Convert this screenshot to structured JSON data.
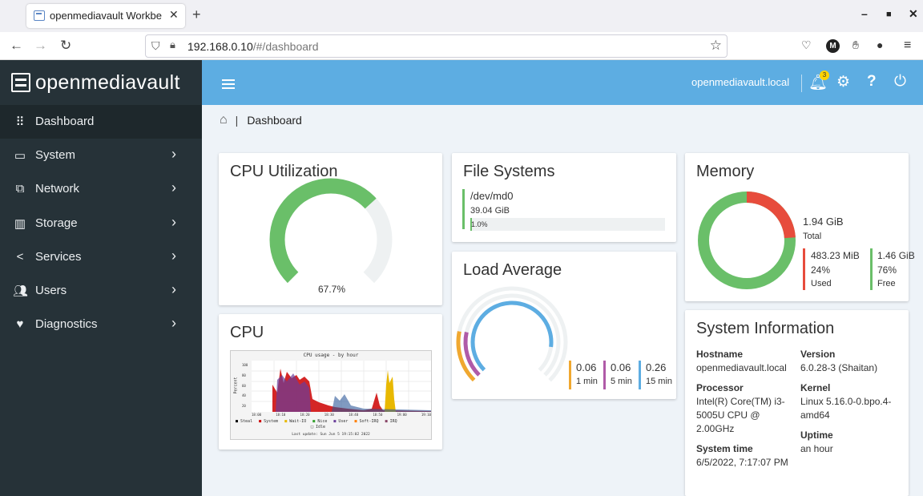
{
  "browser": {
    "tab_title": "openmediavault Workbe",
    "url_host": "192.168.0.10",
    "url_rest": "/#/dashboard"
  },
  "app": {
    "logo_text": "openmediavault"
  },
  "sidebar": {
    "items": [
      {
        "label": "Dashboard",
        "icon": "grid-icon",
        "active": true
      },
      {
        "label": "System",
        "icon": "laptop-icon"
      },
      {
        "label": "Network",
        "icon": "network-icon"
      },
      {
        "label": "Storage",
        "icon": "storage-icon"
      },
      {
        "label": "Services",
        "icon": "share-icon"
      },
      {
        "label": "Users",
        "icon": "users-icon"
      },
      {
        "label": "Diagnostics",
        "icon": "heart-pulse-icon"
      }
    ]
  },
  "topbar": {
    "hostname": "openmediavault.local",
    "notification_count": "3"
  },
  "breadcrumb": {
    "current": "Dashboard"
  },
  "cpu_utilization": {
    "title": "CPU Utilization",
    "value_label": "67.7%",
    "value": 67.7,
    "color": "#6abf69"
  },
  "file_systems": {
    "title": "File Systems",
    "device": "/dev/md0",
    "size": "39.04 GiB",
    "usage_label": "1.0%",
    "usage": 1.0
  },
  "load_average": {
    "title": "Load Average",
    "values": [
      {
        "value": "0.06",
        "label": "1 min",
        "color": "#f0a830"
      },
      {
        "value": "0.06",
        "label": "5 min",
        "color": "#b05ba8"
      },
      {
        "value": "0.26",
        "label": "15 min",
        "color": "#5dade2"
      }
    ]
  },
  "cpu_graph": {
    "title": "CPU",
    "chart_title": "CPU usage - by hour",
    "ylabel": "Percent",
    "ytick_labels": [
      "100",
      "80",
      "60",
      "40",
      "20",
      "0"
    ],
    "xtick_labels": [
      "18:00",
      "18:10",
      "18:20",
      "18:30",
      "18:40",
      "18:50",
      "19:00",
      "19:10"
    ],
    "legend": [
      "Steal",
      "System",
      "Wait-IO",
      "Nice",
      "User",
      "Soft-IRQ",
      "IRQ",
      "Idle"
    ],
    "last_update": "Last update: Sun Jun  5 19:15:02 2022"
  },
  "memory": {
    "title": "Memory",
    "total": "1.94 GiB",
    "total_label": "Total",
    "used": "483.23 MiB",
    "used_pct": "24%",
    "used_label": "Used",
    "used_fraction": 0.24,
    "free": "1.46 GiB",
    "free_pct": "76%",
    "free_label": "Free",
    "used_color": "#e74c3c",
    "free_color": "#6abf69"
  },
  "system_info": {
    "title": "System Information",
    "hostname_label": "Hostname",
    "hostname": "openmediavault.local",
    "version_label": "Version",
    "version": "6.0.28-3 (Shaitan)",
    "processor_label": "Processor",
    "processor": "Intel(R) Core(TM) i3-5005U CPU @ 2.00GHz",
    "kernel_label": "Kernel",
    "kernel": "Linux 5.16.0-0.bpo.4-amd64",
    "systime_label": "System time",
    "systime": "6/5/2022, 7:17:07 PM",
    "uptime_label": "Uptime",
    "uptime": "an hour"
  }
}
